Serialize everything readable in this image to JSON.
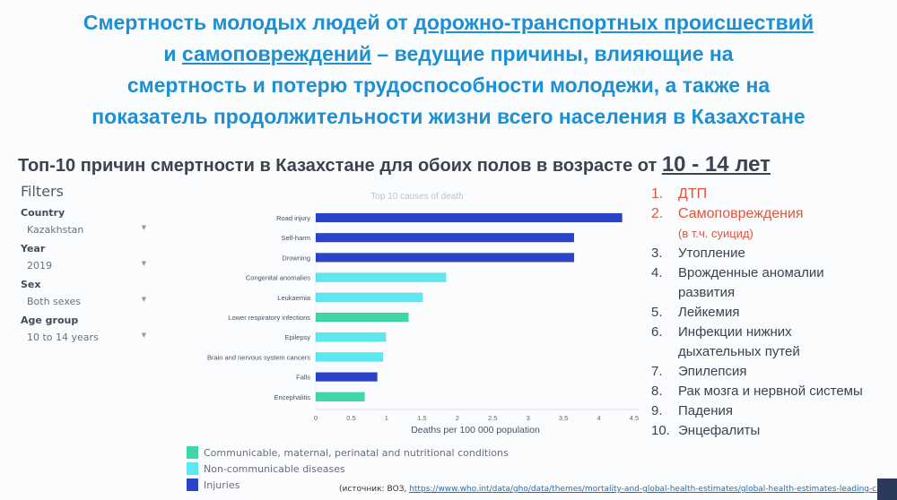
{
  "title": {
    "part1": "Смертность молодых людей от ",
    "link1": "дорожно-транспортных происшествий",
    "part2": "и ",
    "link2": "самоповреждений",
    "part3": " – ведущие причины, влияющие на",
    "line3": "смертность и потерю трудоспособности молодежи, а также на",
    "line4": "показатель продолжительности жизни всего населения в Казахстане"
  },
  "subtitle": {
    "text": "Топ-10 причин смертности в Казахстане для обоих полов в возрасте от ",
    "age": "10 - 14 лет"
  },
  "filters": {
    "heading": "Filters",
    "items": [
      {
        "label": "Country",
        "value": "Kazakhstan"
      },
      {
        "label": "Year",
        "value": "2019"
      },
      {
        "label": "Sex",
        "value": "Both sexes"
      },
      {
        "label": "Age group",
        "value": "10 to 14 years"
      }
    ]
  },
  "colors": {
    "communicable": "#3fd6a8",
    "noncommunicable": "#5ce8ee",
    "injuries": "#2b43c6"
  },
  "chart_data": {
    "type": "bar",
    "orientation": "horizontal",
    "title": "Top 10 causes of death",
    "xlabel": "Deaths per 100 000 population",
    "ylabel": "",
    "xlim": [
      0,
      4.5
    ],
    "xticks": [
      "0",
      "0.5",
      "1",
      "1.5",
      "2",
      "2.5",
      "3",
      "3.5",
      "4",
      "4.5"
    ],
    "categories": [
      "Road injury",
      "Self-harm",
      "Drowning",
      "Congenital anomalies",
      "Leukaemia",
      "Lower respiratory infections",
      "Epilepsy",
      "Brain and nervous system cancers",
      "Falls",
      "Encephalitis"
    ],
    "values": [
      4.33,
      3.65,
      3.65,
      1.84,
      1.51,
      1.31,
      0.99,
      0.95,
      0.87,
      0.69
    ],
    "groups": [
      "injuries",
      "injuries",
      "injuries",
      "noncommunicable",
      "noncommunicable",
      "communicable",
      "noncommunicable",
      "noncommunicable",
      "injuries",
      "communicable"
    ],
    "legend": [
      {
        "key": "communicable",
        "label": "Communicable, maternal, perinatal and nutritional conditions"
      },
      {
        "key": "noncommunicable",
        "label": "Non-communicable diseases"
      },
      {
        "key": "injuries",
        "label": "Injuries"
      }
    ]
  },
  "source": {
    "prefix": "(источник: ВОЗ, ",
    "url": "https://www.who.int/data/gho/data/themes/mortality-and-global-health-estimates/global-health-estimates-leading-causes-of-dalys"
  },
  "ranking": [
    {
      "n": "1.",
      "text": "ДТП"
    },
    {
      "n": "2.",
      "text": "Самоповреждения",
      "note": "(в т.ч. суицид)"
    },
    {
      "n": "3.",
      "text": "Утопление"
    },
    {
      "n": "4.",
      "text": "Врожденные аномалии",
      "cont": "развития"
    },
    {
      "n": "5.",
      "text": "Лейкемия"
    },
    {
      "n": "6.",
      "text": "Инфекции нижних",
      "cont": "дыхательных путей"
    },
    {
      "n": "7.",
      "text": "Эпилепсия"
    },
    {
      "n": "8.",
      "text": "Рак мозга и нервной системы"
    },
    {
      "n": "9.",
      "text": "Падения"
    },
    {
      "n": "10.",
      "text": "Энцефалиты"
    }
  ]
}
